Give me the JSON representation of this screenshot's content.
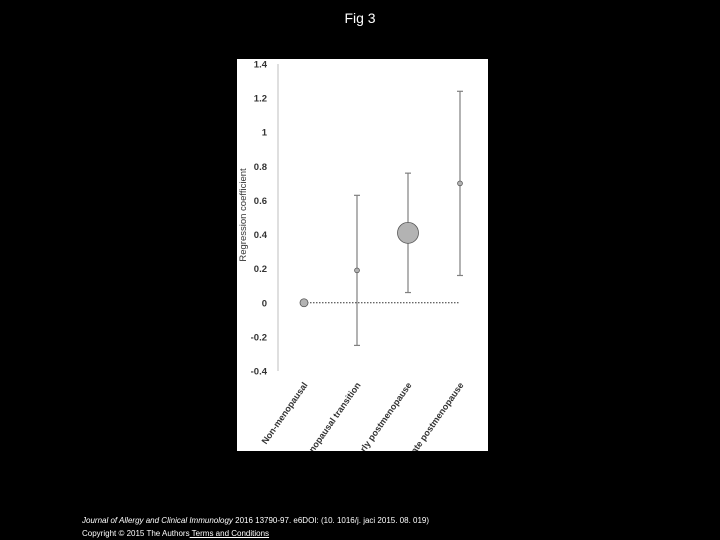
{
  "slide": {
    "title": "Fig 3"
  },
  "citation": {
    "journal": "Journal of Allergy and Clinical Immunology",
    "details": " 2016 13790-97. e6DOI: (10. 1016/j. jaci 2015. 08. 019)"
  },
  "copyright": {
    "text": "Copyright © 2015 The Authors",
    "link": " Terms and Conditions"
  },
  "chart_data": {
    "type": "scatter",
    "ylabel": "Regression coefficient",
    "xlabel": "",
    "ylim": [
      -0.4,
      1.4
    ],
    "yticks": [
      -0.4,
      -0.2,
      0,
      0.2,
      0.4,
      0.6,
      0.8,
      1,
      1.2,
      1.4
    ],
    "categories": [
      "Non-menopausal",
      "Menopausal transition",
      "Early postmenopause",
      "Late postmenopause"
    ],
    "points": [
      {
        "category": "Non-menopausal",
        "y": 0,
        "lower": null,
        "upper": null,
        "marker": "medium"
      },
      {
        "category": "Menopausal transition",
        "y": 0.19,
        "lower": -0.25,
        "upper": 0.63,
        "marker": "small"
      },
      {
        "category": "Early postmenopause",
        "y": 0.41,
        "lower": 0.06,
        "upper": 0.76,
        "marker": "large"
      },
      {
        "category": "Late postmenopause",
        "y": 0.7,
        "lower": 0.16,
        "upper": 1.24,
        "marker": "small"
      }
    ],
    "reference_line": 0,
    "colors": {
      "marker_fill": "#b3b3b3",
      "marker_stroke": "#555555",
      "error_bar": "#808080",
      "axis": "#bfbfbf"
    }
  }
}
